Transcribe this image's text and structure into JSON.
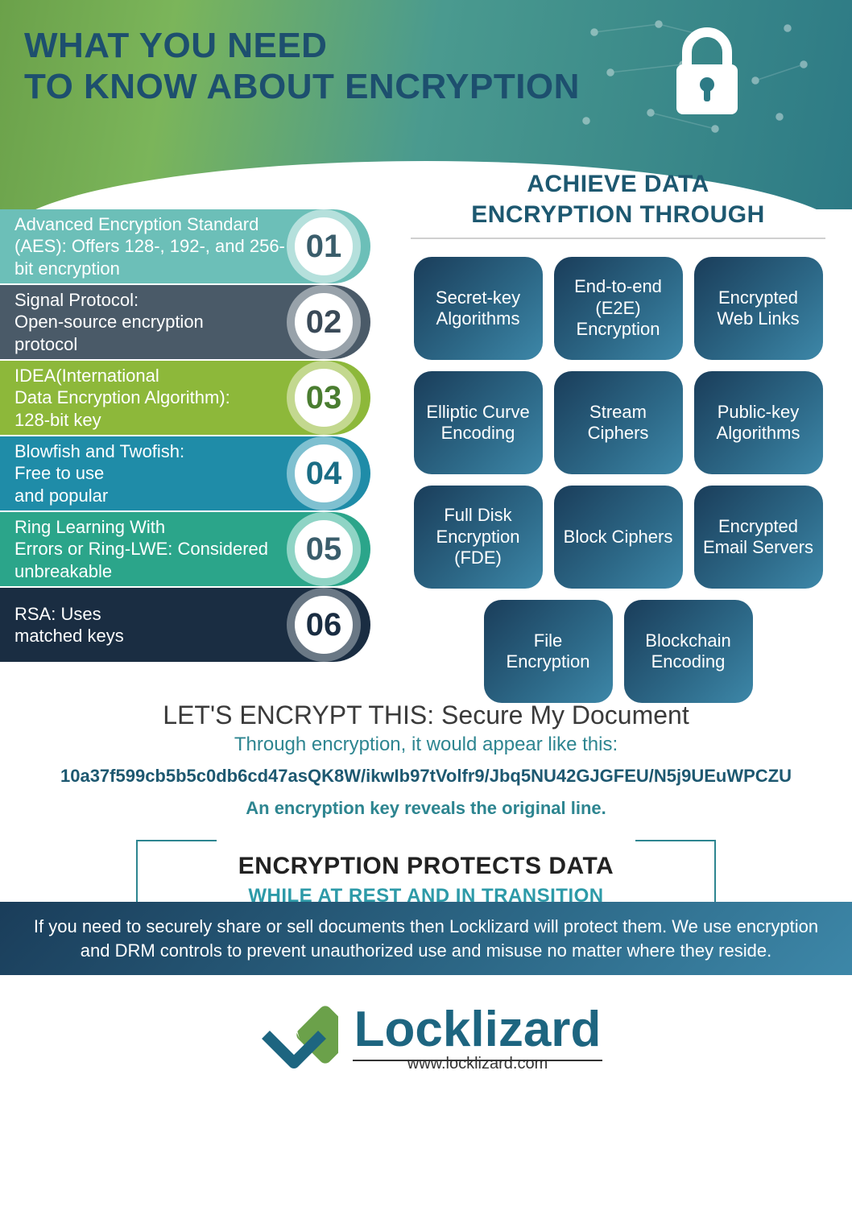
{
  "header": {
    "title_line1": "WHAT YOU NEED",
    "title_line2": "TO KNOW ABOUT ENCRYPTION"
  },
  "algorithms": [
    {
      "num": "01",
      "text": "Advanced Encryption Standard (AES): Offers 128-, 192-, and 256-bit encryption",
      "bar_color": "#6cbfb8",
      "ring_color": "#b5e0dc",
      "num_color": "#3a5d6b"
    },
    {
      "num": "02",
      "text": "Signal Protocol:\nOpen-source encryption\nprotocol",
      "bar_color": "#4a5a68",
      "ring_color": "#98a2aa",
      "num_color": "#3a4a58"
    },
    {
      "num": "03",
      "text": "IDEA(International\nData Encryption Algorithm):\n128-bit key",
      "bar_color": "#8db83a",
      "ring_color": "#c3d88f",
      "num_color": "#4a7d30"
    },
    {
      "num": "04",
      "text": "Blowfish and Twofish:\nFree to use\nand popular",
      "bar_color": "#1f8ca8",
      "ring_color": "#7fc0d0",
      "num_color": "#1a6d85"
    },
    {
      "num": "05",
      "text": "Ring Learning With\nErrors or Ring-LWE: Considered\nunbreakable",
      "bar_color": "#2ba58a",
      "ring_color": "#8fd4c5",
      "num_color": "#3a5d6b"
    },
    {
      "num": "06",
      "text": "RSA: Uses\nmatched keys",
      "bar_color": "#1a2d42",
      "ring_color": "#6a7885",
      "num_color": "#1a2d42"
    }
  ],
  "right": {
    "title_line1": "ACHIEVE DATA",
    "title_line2": "ENCRYPTION THROUGH",
    "tiles": [
      "Secret-key Algorithms",
      "End-to-end (E2E) Encryption",
      "Encrypted Web Links",
      "Elliptic Curve Encoding",
      "Stream Ciphers",
      "Public-key Algorithms",
      "Full Disk Encryption (FDE)",
      "Block Ciphers",
      "Encrypted Email Servers",
      "File Encryption",
      "Blockchain Encoding"
    ]
  },
  "example": {
    "title": "LET'S ENCRYPT THIS:  Secure My Document",
    "subtitle": "Through encryption, it would appear like this:",
    "cipher": "10a37f599cb5b5c0db6cd47asQK8W/ikwIb97tVolfr9/Jbq5NU42GJGFEU/N5j9UEuWPCZU",
    "key_note": "An encryption key reveals the original line."
  },
  "protect": {
    "main": "ENCRYPTION PROTECTS DATA",
    "sub": "WHILE AT REST AND IN TRANSITION"
  },
  "banner": "If you need to securely share or sell documents then Locklizard will protect them.  We use encryption and DRM controls to prevent unauthorized use and misuse no matter where they reside.",
  "logo": {
    "name": "Locklizard",
    "url": "www.locklizard.com"
  },
  "colors": {
    "header_text": "#1d4f6e",
    "tile_gradient_from": "#1a3d5a",
    "tile_gradient_to": "#3d87a8"
  }
}
